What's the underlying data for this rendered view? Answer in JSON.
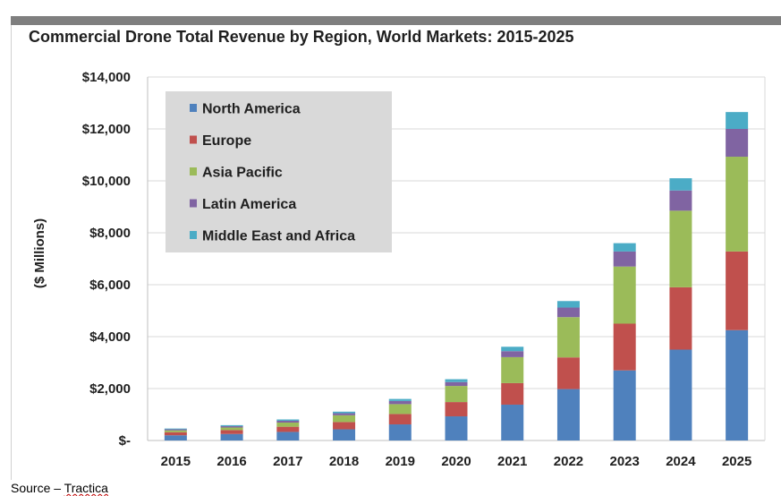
{
  "source": {
    "prefix": "Source – ",
    "name": "Tractica"
  },
  "colors": {
    "north_america": "#4f81bd",
    "europe": "#c0504d",
    "asia_pacific": "#9bbb59",
    "latin_america": "#8064a2",
    "middle_east_africa": "#4bacc6",
    "legend_bg": "#d9d9d9",
    "grid": "#d9d9d9"
  },
  "chart_data": {
    "type": "bar",
    "stacked": true,
    "title": "Commercial Drone Total Revenue by Region, World Markets: 2015-2025",
    "xlabel": "",
    "ylabel": "($ Millions)",
    "ylim": [
      0,
      14000
    ],
    "yticks": [
      0,
      2000,
      4000,
      6000,
      8000,
      10000,
      12000,
      14000
    ],
    "ytick_labels": [
      "$-",
      "$2,000",
      "$4,000",
      "$6,000",
      "$8,000",
      "$10,000",
      "$12,000",
      "$14,000"
    ],
    "grid": true,
    "legend_position": "top-left",
    "categories": [
      "2015",
      "2016",
      "2017",
      "2018",
      "2019",
      "2020",
      "2021",
      "2022",
      "2023",
      "2024",
      "2025"
    ],
    "series": [
      {
        "name": "North America",
        "color": "#4f81bd",
        "values": [
          200,
          250,
          330,
          430,
          620,
          930,
          1380,
          1980,
          2700,
          3500,
          4250
        ]
      },
      {
        "name": "Europe",
        "color": "#c0504d",
        "values": [
          120,
          150,
          200,
          280,
          400,
          550,
          830,
          1220,
          1800,
          2400,
          3030
        ]
      },
      {
        "name": "Asia Pacific",
        "color": "#9bbb59",
        "values": [
          70,
          100,
          160,
          260,
          380,
          620,
          1000,
          1550,
          2200,
          2950,
          3650
        ]
      },
      {
        "name": "Latin America",
        "color": "#8064a2",
        "values": [
          40,
          50,
          70,
          80,
          120,
          150,
          230,
          370,
          580,
          780,
          1070
        ]
      },
      {
        "name": "Middle East and Africa",
        "color": "#4bacc6",
        "values": [
          30,
          40,
          50,
          60,
          80,
          110,
          170,
          250,
          320,
          470,
          650
        ]
      }
    ]
  }
}
